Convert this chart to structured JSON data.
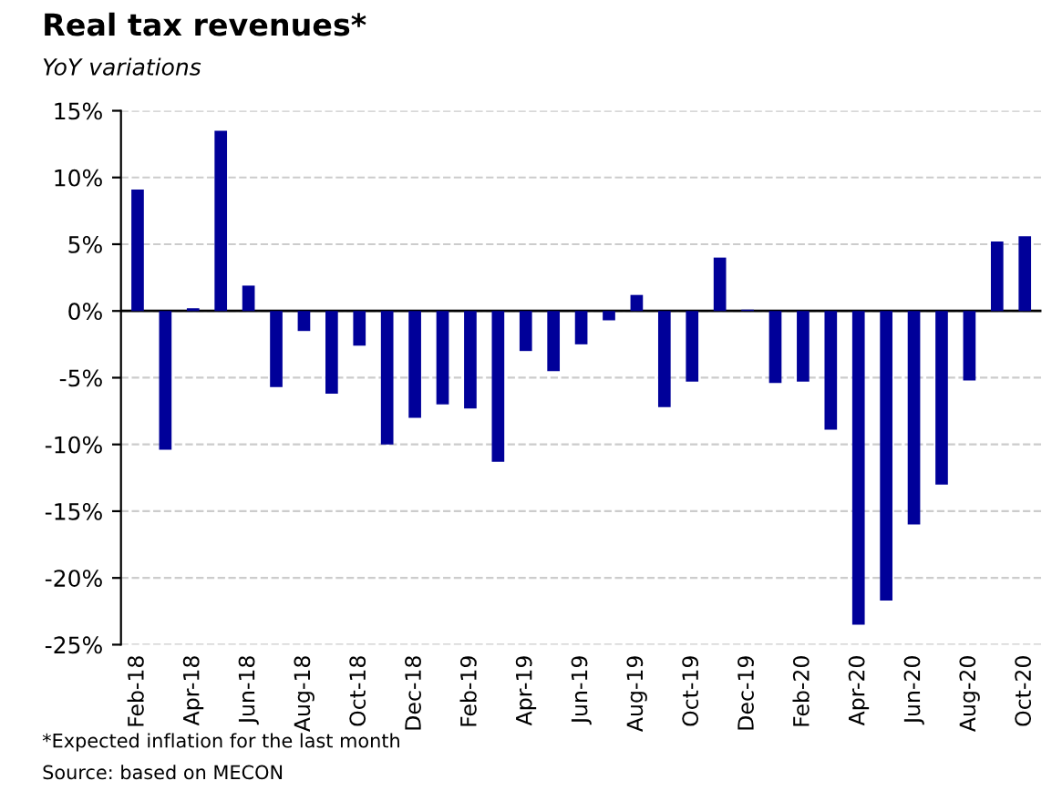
{
  "chart_data": {
    "type": "bar",
    "title": "Real tax revenues*",
    "subtitle": "YoY variations",
    "categories": [
      "Feb-18",
      null,
      "Apr-18",
      null,
      "Jun-18",
      null,
      "Aug-18",
      null,
      "Oct-18",
      null,
      "Dec-18",
      null,
      "Feb-19",
      null,
      "Apr-19",
      null,
      "Jun-19",
      null,
      "Aug-19",
      null,
      "Oct-19",
      null,
      "Dec-19",
      null,
      "Feb-20",
      null,
      "Apr-20",
      null,
      "Jun-20",
      null,
      "Aug-20",
      null,
      "Oct-20"
    ],
    "values": [
      9.1,
      -10.4,
      0.2,
      13.5,
      1.9,
      -5.7,
      -1.5,
      -6.2,
      -2.6,
      -10.0,
      -8.0,
      -7.0,
      -7.3,
      -11.3,
      -3.0,
      -4.5,
      -2.5,
      -0.7,
      1.2,
      -7.2,
      -5.3,
      4.0,
      0.1,
      -5.4,
      -5.3,
      -8.9,
      -23.5,
      -21.7,
      -16.0,
      -13.0,
      -5.2,
      5.2,
      5.6
    ],
    "color": "#000099",
    "ylim": [
      -25,
      15
    ],
    "yticks": [
      {
        "value": -25,
        "label": "-25%"
      },
      {
        "value": -20,
        "label": "-20%"
      },
      {
        "value": -15,
        "label": "-15%"
      },
      {
        "value": -10,
        "label": "-10%"
      },
      {
        "value": -5,
        "label": "-5%"
      },
      {
        "value": 0,
        "label": "0%"
      },
      {
        "value": 5,
        "label": "5%"
      },
      {
        "value": 10,
        "label": "10%"
      },
      {
        "value": 15,
        "label": "15%"
      }
    ],
    "grid": "y",
    "legend": false,
    "annotations": [
      "*Expected inflation for the last month",
      "Source: based on MECON"
    ]
  }
}
